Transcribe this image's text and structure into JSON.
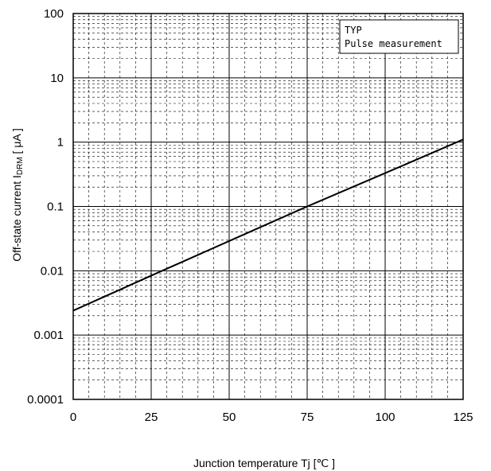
{
  "chart_data": {
    "type": "line",
    "title": "",
    "xlabel": "Junction temperature   Tj  [℃ ]",
    "ylabel_main": "Off-state current   I",
    "ylabel_sub": "DRM",
    "ylabel_unit": "  [ μA ]",
    "xlim": [
      0,
      125
    ],
    "ylim": [
      0.0001,
      100
    ],
    "y_scale": "log",
    "grid": true,
    "x_ticks": [
      0,
      25,
      50,
      75,
      100,
      125
    ],
    "x_tick_labels": [
      "0",
      "25",
      "50",
      "75",
      "100",
      "125"
    ],
    "y_ticks": [
      0.0001,
      0.001,
      0.01,
      0.1,
      1,
      10,
      100
    ],
    "y_tick_labels": [
      "0.0001",
      "0.001",
      "0.01",
      "0.1",
      "1",
      "10",
      "100"
    ],
    "legend_placement": "top-right",
    "legend_lines": [
      "TYP",
      "Pulse measurement"
    ],
    "series": [
      {
        "x": [
          0,
          25,
          50,
          75,
          100,
          125
        ],
        "y": [
          0.0024,
          0.0084,
          0.029,
          0.1,
          0.33,
          1.1
        ]
      }
    ],
    "colors": {
      "line": "#000000",
      "grid": "#000000",
      "background": "#ffffff"
    }
  }
}
